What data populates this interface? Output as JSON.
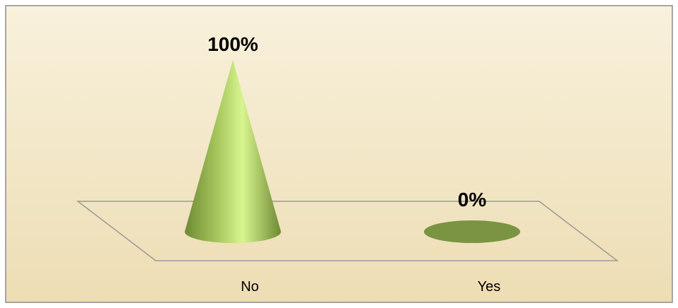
{
  "chart_data": {
    "type": "bar",
    "shape": "cone",
    "categories": [
      "No",
      "Yes"
    ],
    "values": [
      100,
      0
    ],
    "data_labels": [
      "100%",
      "0%"
    ],
    "ylim": [
      0,
      100
    ],
    "grid": false,
    "legend": "none",
    "colors": {
      "background_top": "#F8F1DC",
      "background_bottom": "#EDDDB3",
      "cone_light": "#D8F58F",
      "cone_mid": "#A9C85E",
      "cone_dark": "#6E8A33",
      "base_ellipse": "#7A9443",
      "floor_stroke": "#9A9A9A",
      "frame_stroke": "#8C8C8C"
    }
  }
}
